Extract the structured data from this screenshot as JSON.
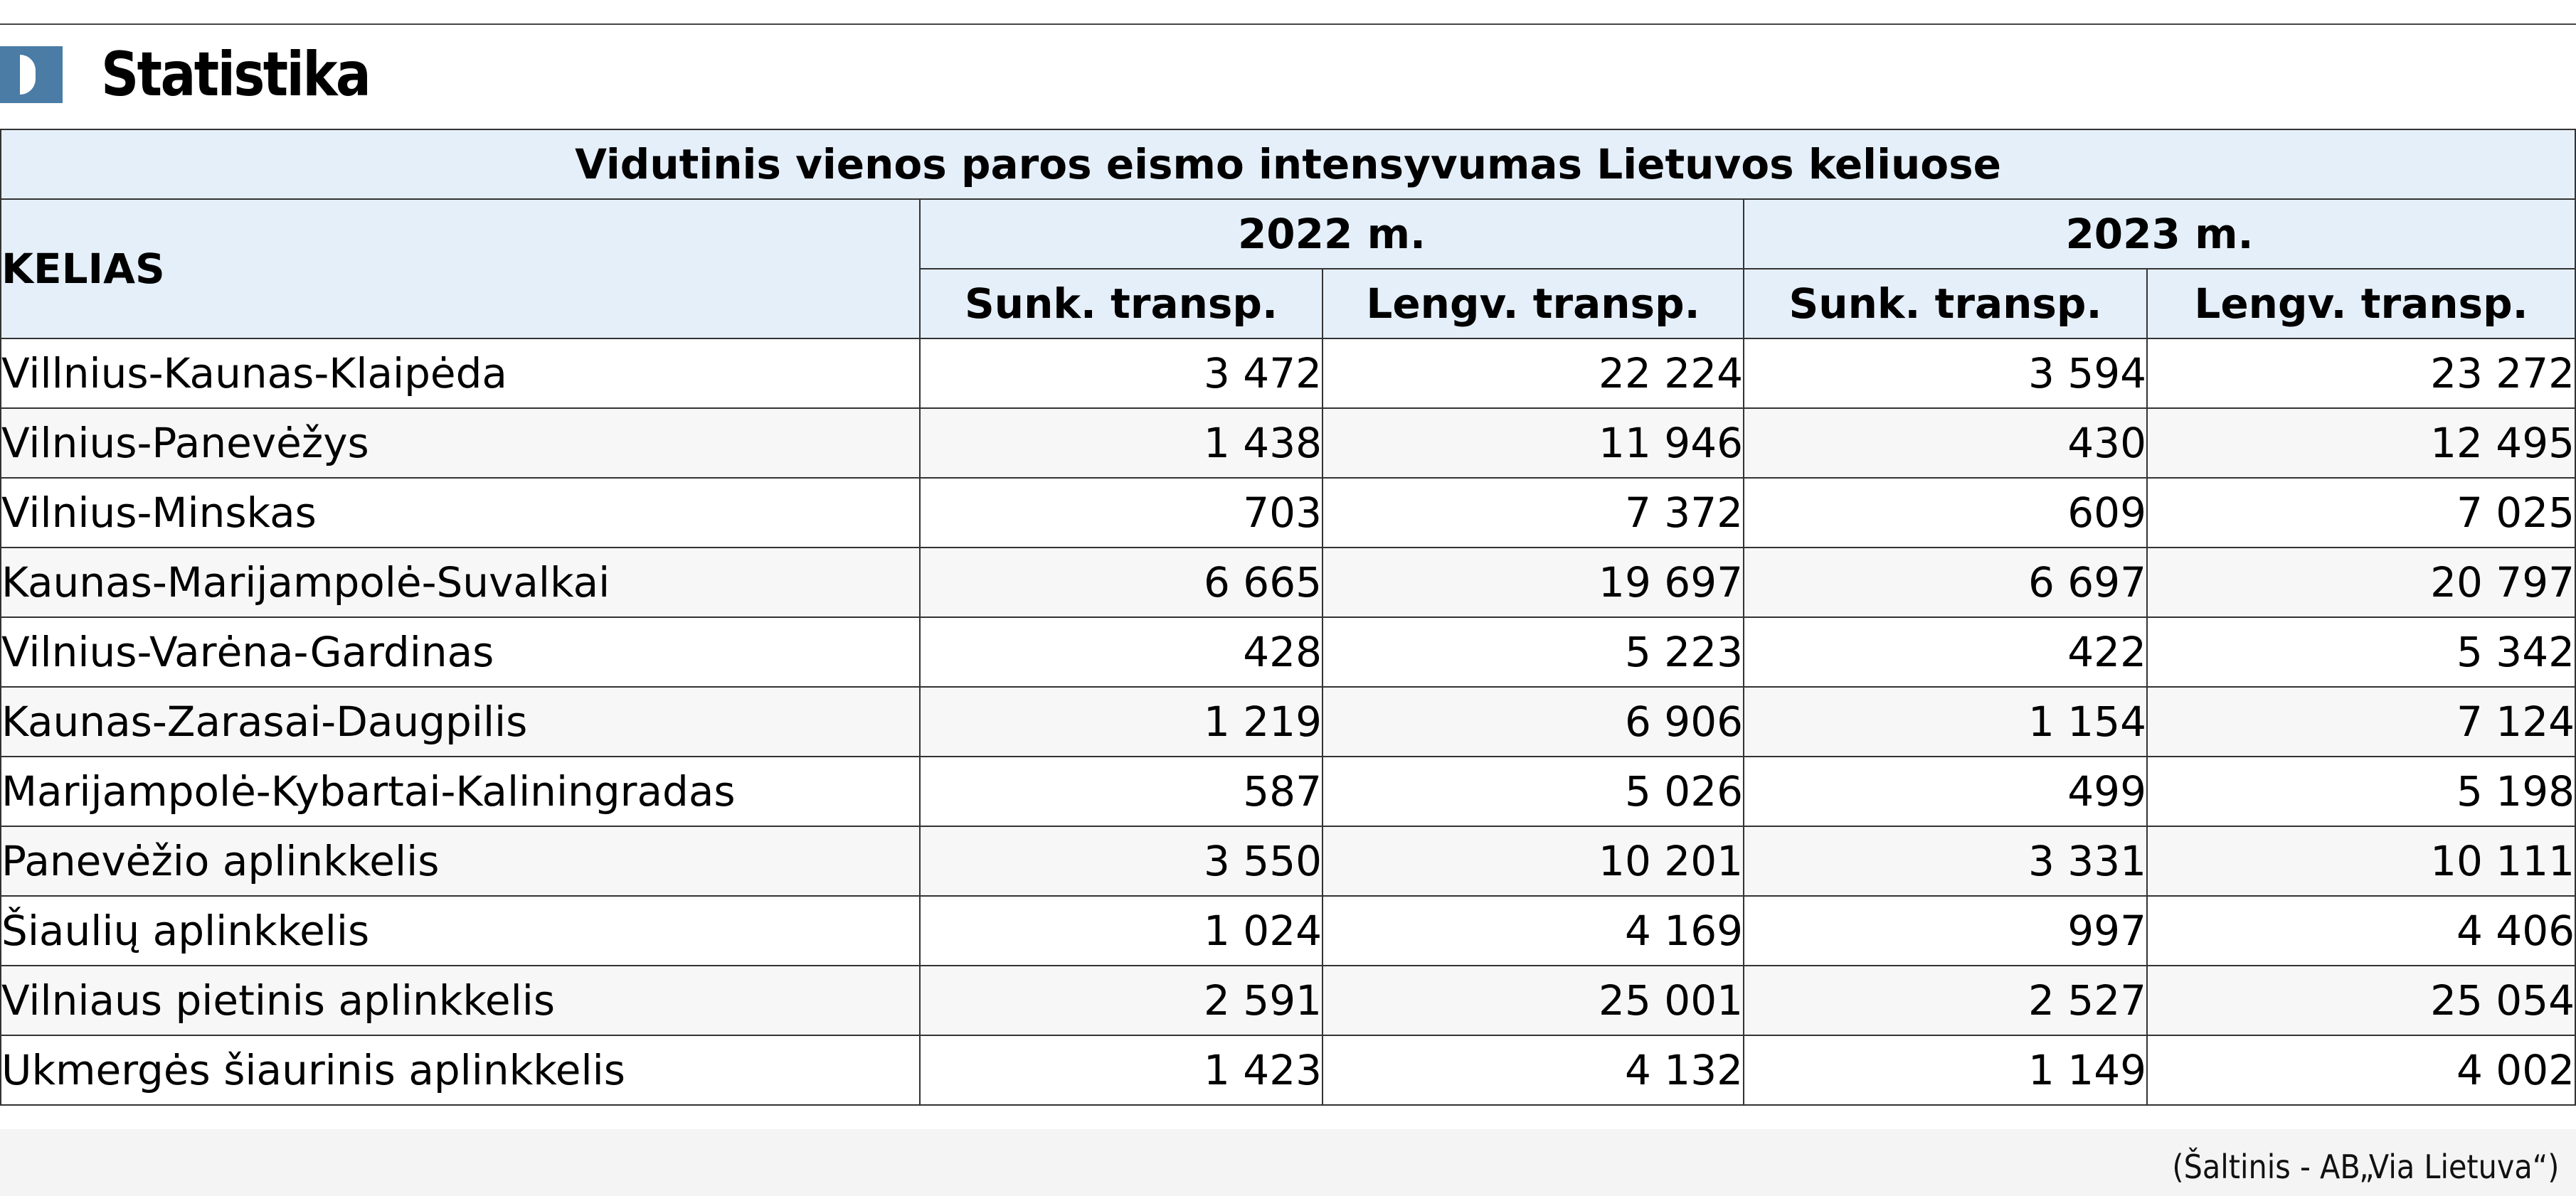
{
  "header": {
    "logo_icon": "d-logo-icon",
    "title": "Statistika",
    "accent_color": "#4a7ca6"
  },
  "table": {
    "title": "Vidutinis vienos paros eismo intensyvumas Lietuvos keliuose",
    "road_header": "KELIAS",
    "years": [
      "2022 m.",
      "2023 m."
    ],
    "sub_headers": [
      "Sunk. transp.",
      "Lengv. transp.",
      "Sunk. transp.",
      "Lengv. transp."
    ],
    "header_bg": "#e5eff9",
    "rows": [
      {
        "road": "Villnius-Kaunas-Klaipėda",
        "v2022_heavy": "3 472",
        "v2022_light": "22 224",
        "v2023_heavy": "3 594",
        "v2023_light": "23 272"
      },
      {
        "road": "Vilnius-Panevėžys",
        "v2022_heavy": "1 438",
        "v2022_light": "11 946",
        "v2023_heavy": "430",
        "v2023_light": "12 495"
      },
      {
        "road": "Vilnius-Minskas",
        "v2022_heavy": "703",
        "v2022_light": "7 372",
        "v2023_heavy": "609",
        "v2023_light": "7 025"
      },
      {
        "road": "Kaunas-Marijampolė-Suvalkai",
        "v2022_heavy": "6 665",
        "v2022_light": "19 697",
        "v2023_heavy": "6 697",
        "v2023_light": "20 797"
      },
      {
        "road": "Vilnius-Varėna-Gardinas",
        "v2022_heavy": "428",
        "v2022_light": "5 223",
        "v2023_heavy": "422",
        "v2023_light": "5 342"
      },
      {
        "road": "Kaunas-Zarasai-Daugpilis",
        "v2022_heavy": "1 219",
        "v2022_light": "6 906",
        "v2023_heavy": "1 154",
        "v2023_light": "7 124"
      },
      {
        "road": "Marijampolė-Kybartai-Kaliningradas",
        "v2022_heavy": "587",
        "v2022_light": "5 026",
        "v2023_heavy": "499",
        "v2023_light": "5 198"
      },
      {
        "road": "Panevėžio aplinkkelis",
        "v2022_heavy": "3 550",
        "v2022_light": "10 201",
        "v2023_heavy": "3 331",
        "v2023_light": "10 111"
      },
      {
        "road": "Šiaulių aplinkkelis",
        "v2022_heavy": "1 024",
        "v2022_light": "4 169",
        "v2023_heavy": "997",
        "v2023_light": "4 406"
      },
      {
        "road": "Vilniaus pietinis aplinkkelis",
        "v2022_heavy": "2 591",
        "v2022_light": "25 001",
        "v2023_heavy": "2 527",
        "v2023_light": "25 054"
      },
      {
        "road": "Ukmergės šiaurinis aplinkkelis",
        "v2022_heavy": "1 423",
        "v2022_light": "4 132",
        "v2023_heavy": "1 149",
        "v2023_light": "4 002"
      }
    ]
  },
  "source": "(Šaltinis - AB„Via Lietuva“)"
}
